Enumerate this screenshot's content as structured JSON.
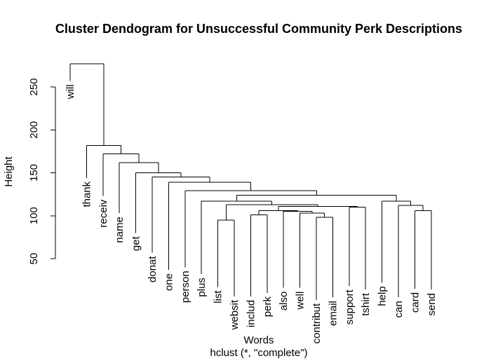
{
  "chart_data": {
    "type": "dendrogram",
    "title": "Cluster Dendogram for Unsuccessful Community Perk Descriptions",
    "xlabel": "Words",
    "sublabel": "hclust (*, \"complete\")",
    "ylabel": "Height",
    "yticks": [
      50,
      100,
      150,
      200,
      250
    ],
    "ylim": [
      50,
      290
    ],
    "leaves": [
      "will",
      "thank",
      "receiv",
      "name",
      "get",
      "donat",
      "one",
      "person",
      "plus",
      "list",
      "websit",
      "includ",
      "perk",
      "also",
      "well",
      "contribut",
      "email",
      "support",
      "tshirt",
      "help",
      "can",
      "card",
      "send"
    ],
    "leaf_label_heights": [
      257,
      144,
      123,
      103,
      80,
      57,
      37,
      40,
      32,
      17,
      6,
      6,
      10,
      16,
      16,
      2,
      5,
      18,
      14,
      22,
      5,
      15,
      14
    ],
    "merges": [
      {
        "a": 15,
        "b": 16,
        "height": 98
      },
      {
        "a": 9,
        "b": 10,
        "height": 95
      },
      {
        "a": 21,
        "b": 22,
        "height": 106
      },
      {
        "a": 11,
        "b": 12,
        "height": 101
      },
      {
        "a": 14,
        "b": "m1",
        "height": 103
      },
      {
        "a": 13,
        "b": "m5",
        "height": 105
      },
      {
        "a": "m4",
        "b": "m6",
        "height": 106
      },
      {
        "a": 20,
        "b": "m3",
        "height": 112
      },
      {
        "a": 17,
        "b": 18,
        "height": 110
      },
      {
        "a": "m7",
        "b": "m9",
        "height": 111
      },
      {
        "a": "m2",
        "b": "m10",
        "height": 113
      },
      {
        "a": 19,
        "b": "m8",
        "height": 117
      },
      {
        "a": 8,
        "b": "m11",
        "height": 117
      },
      {
        "a": "m13",
        "b": "m12",
        "height": 124
      },
      {
        "a": 7,
        "b": "m14",
        "height": 129
      },
      {
        "a": 6,
        "b": "m15",
        "height": 139
      },
      {
        "a": 5,
        "b": "m16",
        "height": 145
      },
      {
        "a": 4,
        "b": "m17",
        "height": 150
      },
      {
        "a": 3,
        "b": "m18",
        "height": 162
      },
      {
        "a": 2,
        "b": "m19",
        "height": 172
      },
      {
        "a": 1,
        "b": "m20",
        "height": 182
      },
      {
        "a": 0,
        "b": "m21",
        "height": 277
      }
    ]
  }
}
